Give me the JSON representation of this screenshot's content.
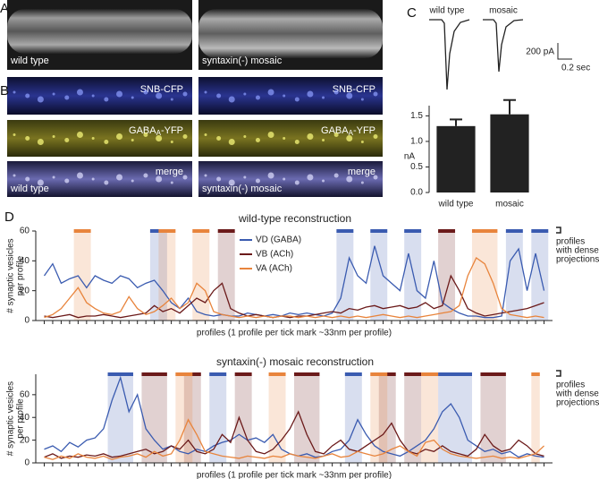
{
  "panels": [
    "A",
    "B",
    "C",
    "D"
  ],
  "images_a": {
    "left": "wild type",
    "right": "syntaxin(-) mosaic"
  },
  "images_b": {
    "row1": "SNB-CFP",
    "row2": [
      "GABA",
      "A",
      "-YFP"
    ],
    "row3": "merge",
    "left": "wild type",
    "right": "syntaxin(-) mosaic"
  },
  "traces": {
    "left": "wild type",
    "right": "mosaic",
    "scale_y": "200 pA",
    "scale_x": "0.2 sec"
  },
  "annotation": [
    "profiles",
    "with dense",
    "projections"
  ],
  "chart_data": [
    {
      "type": "bar",
      "y_label": "nA",
      "categories": [
        "wild type",
        "mosaic"
      ],
      "values": [
        1.3,
        1.53
      ],
      "errors": [
        0.13,
        0.28
      ],
      "color": "#222222",
      "ylim": [
        0,
        1.7
      ],
      "yticks": [
        {
          "value": 0,
          "label": "0.0"
        },
        {
          "value": 0.5,
          "label": "0.5"
        },
        {
          "value": 1,
          "label": "1.0"
        },
        {
          "value": 1.5,
          "label": "1.5"
        }
      ]
    },
    {
      "type": "line",
      "title": "wild-type reconstruction",
      "x_label": "profiles (1 profile per tick mark ~33nm per profile)",
      "y_label": [
        "# synaptic vesicles",
        "per profile"
      ],
      "xlim": [
        0,
        61
      ],
      "ylim": [
        0,
        60
      ],
      "yticks": [
        0,
        20,
        40,
        60
      ],
      "x": [
        1,
        2,
        3,
        4,
        5,
        6,
        7,
        8,
        9,
        10,
        11,
        12,
        13,
        14,
        15,
        16,
        17,
        18,
        19,
        20,
        21,
        22,
        23,
        24,
        25,
        26,
        27,
        28,
        29,
        30,
        31,
        32,
        33,
        34,
        35,
        36,
        37,
        38,
        39,
        40,
        41,
        42,
        43,
        44,
        45,
        46,
        47,
        48,
        49,
        50,
        51,
        52,
        53,
        54,
        55,
        56,
        57,
        58,
        59,
        60
      ],
      "series": [
        {
          "name": "VD (GABA)",
          "color": "#3a5bb0",
          "values": [
            30,
            38,
            25,
            28,
            30,
            22,
            30,
            27,
            25,
            30,
            28,
            22,
            25,
            27,
            20,
            12,
            8,
            15,
            6,
            4,
            3,
            4,
            3,
            3,
            5,
            4,
            3,
            4,
            3,
            5,
            4,
            5,
            4,
            3,
            5,
            15,
            42,
            30,
            25,
            50,
            30,
            25,
            20,
            45,
            20,
            15,
            40,
            12,
            8,
            5,
            3,
            3,
            2,
            2,
            3,
            40,
            48,
            20,
            45,
            20
          ],
          "dense_projections": [
            [
              14,
              15
            ],
            [
              36,
              37
            ],
            [
              40,
              41
            ],
            [
              44,
              45
            ],
            [
              56,
              57
            ],
            [
              59,
              60
            ]
          ]
        },
        {
          "name": "VB (ACh)",
          "color": "#6b1a1a",
          "values": [
            3,
            2,
            3,
            4,
            2,
            3,
            3,
            4,
            3,
            2,
            3,
            4,
            5,
            10,
            6,
            8,
            5,
            10,
            15,
            12,
            20,
            25,
            8,
            5,
            3,
            4,
            3,
            2,
            3,
            2,
            3,
            3,
            4,
            5,
            6,
            5,
            8,
            7,
            9,
            10,
            8,
            9,
            10,
            8,
            9,
            12,
            8,
            10,
            30,
            20,
            8,
            5,
            3,
            4,
            5,
            6,
            7,
            8,
            10,
            12
          ],
          "dense_projections": [
            [
              22,
              23
            ],
            [
              48,
              49
            ]
          ]
        },
        {
          "name": "VA (ACh)",
          "color": "#e8843c",
          "values": [
            2,
            4,
            8,
            15,
            22,
            12,
            8,
            5,
            4,
            6,
            16,
            8,
            4,
            6,
            10,
            15,
            8,
            12,
            25,
            20,
            6,
            4,
            3,
            2,
            3,
            2,
            3,
            2,
            3,
            3,
            2,
            3,
            2,
            3,
            2,
            3,
            2,
            3,
            2,
            3,
            4,
            3,
            2,
            3,
            2,
            3,
            4,
            5,
            6,
            10,
            30,
            42,
            38,
            25,
            8,
            4,
            3,
            2,
            3,
            2
          ],
          "dense_projections": [
            [
              5,
              6
            ],
            [
              15,
              16
            ],
            [
              19,
              20
            ],
            [
              52,
              54
            ]
          ]
        }
      ]
    },
    {
      "type": "line",
      "title": "syntaxin(-) mosaic reconstruction",
      "x_label": "profiles (1 profile per tick mark ~33nm per profile)",
      "y_label": [
        "# synaptic vesicles",
        "per profile"
      ],
      "xlim": [
        0,
        61
      ],
      "ylim": [
        0,
        78
      ],
      "yticks": [
        0,
        20,
        40,
        60
      ],
      "x": [
        1,
        2,
        3,
        4,
        5,
        6,
        7,
        8,
        9,
        10,
        11,
        12,
        13,
        14,
        15,
        16,
        17,
        18,
        19,
        20,
        21,
        22,
        23,
        24,
        25,
        26,
        27,
        28,
        29,
        30,
        31,
        32,
        33,
        34,
        35,
        36,
        37,
        38,
        39,
        40,
        41,
        42,
        43,
        44,
        45,
        46,
        47,
        48,
        49,
        50,
        51,
        52,
        53,
        54,
        55,
        56,
        57,
        58,
        59,
        60
      ],
      "series": [
        {
          "color": "#3a5bb0",
          "values": [
            12,
            15,
            10,
            18,
            14,
            20,
            22,
            30,
            55,
            75,
            45,
            60,
            30,
            20,
            12,
            15,
            10,
            8,
            12,
            10,
            15,
            18,
            20,
            25,
            20,
            22,
            18,
            25,
            12,
            8,
            6,
            8,
            5,
            6,
            10,
            12,
            20,
            38,
            25,
            15,
            10,
            8,
            6,
            10,
            15,
            20,
            30,
            45,
            52,
            40,
            20,
            15,
            10,
            12,
            8,
            10,
            5,
            8,
            6,
            5
          ],
          "dense_projections": [
            [
              9,
              11
            ],
            [
              21,
              22
            ],
            [
              37,
              38
            ],
            [
              48,
              51
            ]
          ]
        },
        {
          "color": "#6b1a1a",
          "values": [
            5,
            8,
            4,
            6,
            5,
            7,
            6,
            8,
            5,
            6,
            8,
            10,
            12,
            8,
            10,
            15,
            12,
            20,
            10,
            8,
            12,
            25,
            18,
            40,
            20,
            10,
            8,
            12,
            20,
            30,
            45,
            25,
            10,
            8,
            15,
            20,
            12,
            10,
            15,
            20,
            25,
            35,
            20,
            10,
            8,
            12,
            10,
            15,
            10,
            8,
            6,
            12,
            25,
            15,
            10,
            12,
            20,
            15,
            8,
            6
          ],
          "dense_projections": [
            [
              13,
              15
            ],
            [
              18,
              19
            ],
            [
              24,
              25
            ],
            [
              31,
              33
            ],
            [
              41,
              42
            ],
            [
              44,
              45
            ],
            [
              53,
              55
            ]
          ]
        },
        {
          "color": "#e8843c",
          "values": [
            5,
            3,
            6,
            4,
            8,
            5,
            4,
            6,
            3,
            5,
            6,
            8,
            5,
            10,
            6,
            8,
            20,
            38,
            25,
            10,
            8,
            6,
            5,
            4,
            6,
            5,
            4,
            6,
            5,
            8,
            6,
            5,
            4,
            6,
            8,
            5,
            6,
            10,
            8,
            6,
            8,
            12,
            15,
            10,
            6,
            18,
            20,
            12,
            8,
            6,
            5,
            4,
            5,
            6,
            4,
            5,
            4,
            6,
            8,
            15
          ],
          "dense_projections": [
            [
              17,
              18
            ],
            [
              28,
              29
            ],
            [
              40,
              41
            ],
            [
              46,
              47
            ],
            [
              59,
              59
            ]
          ]
        }
      ]
    }
  ]
}
